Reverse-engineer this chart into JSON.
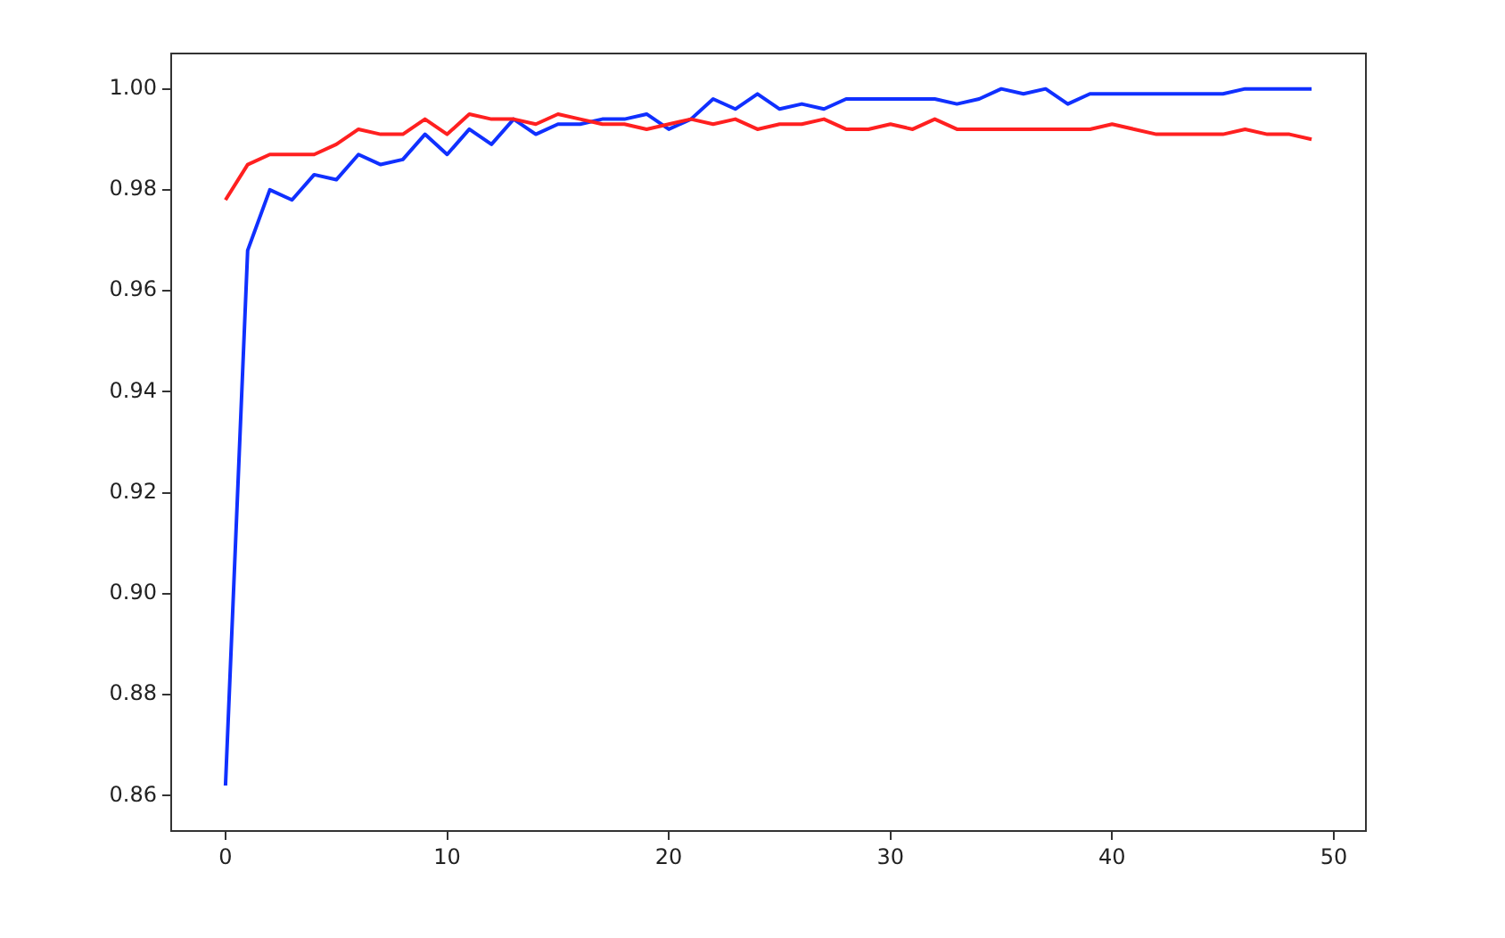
{
  "chart_data": {
    "type": "line",
    "x": [
      0,
      1,
      2,
      3,
      4,
      5,
      6,
      7,
      8,
      9,
      10,
      11,
      12,
      13,
      14,
      15,
      16,
      17,
      18,
      19,
      20,
      21,
      22,
      23,
      24,
      25,
      26,
      27,
      28,
      29,
      30,
      31,
      32,
      33,
      34,
      35,
      36,
      37,
      38,
      39,
      40,
      41,
      42,
      43,
      44,
      45,
      46,
      47,
      48,
      49
    ],
    "series": [
      {
        "color": "#ff2020",
        "values": [
          0.978,
          0.985,
          0.987,
          0.987,
          0.987,
          0.989,
          0.992,
          0.991,
          0.991,
          0.994,
          0.991,
          0.995,
          0.994,
          0.994,
          0.993,
          0.995,
          0.994,
          0.993,
          0.993,
          0.992,
          0.993,
          0.994,
          0.993,
          0.994,
          0.992,
          0.993,
          0.993,
          0.994,
          0.992,
          0.992,
          0.993,
          0.992,
          0.994,
          0.992,
          0.992,
          0.992,
          0.992,
          0.992,
          0.992,
          0.992,
          0.993,
          0.992,
          0.991,
          0.991,
          0.991,
          0.991,
          0.992,
          0.991,
          0.991,
          0.99
        ]
      },
      {
        "color": "#1030ff",
        "values": [
          0.862,
          0.968,
          0.98,
          0.978,
          0.983,
          0.982,
          0.987,
          0.985,
          0.986,
          0.991,
          0.987,
          0.992,
          0.989,
          0.994,
          0.991,
          0.993,
          0.993,
          0.994,
          0.994,
          0.995,
          0.992,
          0.994,
          0.998,
          0.996,
          0.999,
          0.996,
          0.997,
          0.996,
          0.998,
          0.998,
          0.998,
          0.998,
          0.998,
          0.997,
          0.998,
          1.0,
          0.999,
          1.0,
          0.997,
          0.999,
          0.999,
          0.999,
          0.999,
          0.999,
          0.999,
          0.999,
          1.0,
          1.0,
          1.0,
          1.0
        ]
      }
    ],
    "xlim": [
      -2.45,
      51.45
    ],
    "xticks": [
      0,
      10,
      20,
      30,
      40,
      50
    ],
    "ylim": [
      0.853,
      1.007
    ],
    "yticks": [
      {
        "value": 0.86,
        "label": "0.86"
      },
      {
        "value": 0.88,
        "label": "0.88"
      },
      {
        "value": 0.9,
        "label": "0.90"
      },
      {
        "value": 0.92,
        "label": "0.92"
      },
      {
        "value": 0.94,
        "label": "0.94"
      },
      {
        "value": 0.96,
        "label": "0.96"
      },
      {
        "value": 0.98,
        "label": "0.98"
      },
      {
        "value": 1,
        "label": "1.00"
      }
    ],
    "grid": false,
    "legend": false,
    "marker": "none",
    "line_style": "solid"
  }
}
